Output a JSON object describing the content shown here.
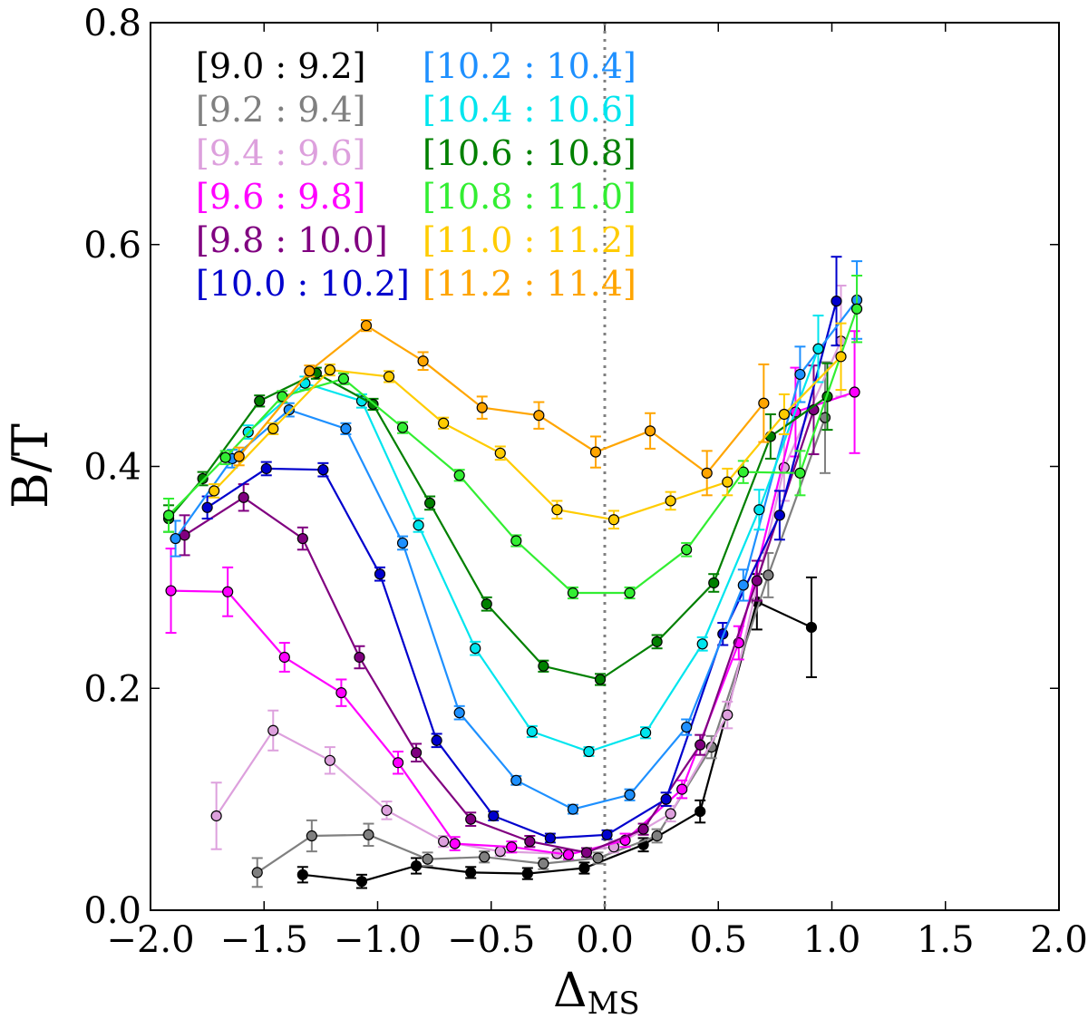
{
  "chart_data": {
    "type": "line",
    "title": "",
    "xlabel": "Δ",
    "xlabel_sub": "MS",
    "ylabel": "B/T",
    "xlim": [
      -2.0,
      2.0
    ],
    "ylim": [
      0.0,
      0.8
    ],
    "x_ticks": [
      -2.0,
      -1.5,
      -1.0,
      -0.5,
      0.0,
      0.5,
      1.0,
      1.5,
      2.0
    ],
    "x_tick_labels": [
      "−2.0",
      "−1.5",
      "−1.0",
      "−0.5",
      "0.0",
      "0.5",
      "1.0",
      "1.5",
      "2.0"
    ],
    "y_ticks": [
      0.0,
      0.2,
      0.4,
      0.6,
      0.8
    ],
    "y_tick_labels": [
      "0.0",
      "0.2",
      "0.4",
      "0.6",
      "0.8"
    ],
    "reference_line": {
      "x": 0.0,
      "style": "dotted",
      "color": "#808080"
    },
    "legend_position": "top-left",
    "series": [
      {
        "name": "[9.0 : 9.2]",
        "color": "#000000",
        "x": [
          -1.33,
          -1.07,
          -0.83,
          -0.59,
          -0.34,
          -0.09,
          0.17,
          0.42,
          0.67,
          0.91
        ],
        "y": [
          0.032,
          0.026,
          0.04,
          0.034,
          0.033,
          0.038,
          0.059,
          0.089,
          0.278,
          0.255
        ],
        "err": [
          0.007,
          0.006,
          0.007,
          0.005,
          0.005,
          0.005,
          0.006,
          0.01,
          0.025,
          0.045
        ]
      },
      {
        "name": "[9.2 : 9.4]",
        "color": "#808080",
        "x": [
          -1.53,
          -1.29,
          -1.04,
          -0.78,
          -0.53,
          -0.27,
          -0.03,
          0.23,
          0.47,
          0.72,
          0.97
        ],
        "y": [
          0.034,
          0.067,
          0.068,
          0.046,
          0.048,
          0.042,
          0.047,
          0.067,
          0.147,
          0.302,
          0.444
        ],
        "err": [
          0.013,
          0.014,
          0.01,
          0.006,
          0.005,
          0.005,
          0.005,
          0.006,
          0.01,
          0.02,
          0.05
        ]
      },
      {
        "name": "[9.4 : 9.6]",
        "color": "#dda0dd",
        "x": [
          -1.71,
          -1.46,
          -1.21,
          -0.96,
          -0.71,
          -0.46,
          -0.21,
          0.04,
          0.29,
          0.54,
          0.79,
          1.04
        ],
        "y": [
          0.085,
          0.162,
          0.135,
          0.09,
          0.062,
          0.053,
          0.051,
          0.057,
          0.087,
          0.176,
          0.399,
          0.513
        ],
        "err": [
          0.03,
          0.018,
          0.012,
          0.008,
          0.005,
          0.004,
          0.004,
          0.005,
          0.007,
          0.012,
          0.03,
          0.05
        ]
      },
      {
        "name": "[9.6 : 9.8]",
        "color": "#ff00ff",
        "x": [
          -1.91,
          -1.66,
          -1.41,
          -1.16,
          -0.91,
          -0.66,
          -0.41,
          -0.16,
          0.09,
          0.34,
          0.59,
          0.84,
          1.1
        ],
        "y": [
          0.288,
          0.287,
          0.228,
          0.196,
          0.133,
          0.06,
          0.057,
          0.05,
          0.063,
          0.109,
          0.241,
          0.449,
          0.467
        ],
        "err": [
          0.038,
          0.022,
          0.013,
          0.012,
          0.01,
          0.006,
          0.005,
          0.004,
          0.006,
          0.008,
          0.015,
          0.04,
          0.055
        ]
      },
      {
        "name": "[9.8 : 10.0]",
        "color": "#800080",
        "x": [
          -1.85,
          -1.59,
          -1.33,
          -1.08,
          -0.83,
          -0.59,
          -0.33,
          -0.08,
          0.17,
          0.42,
          0.67,
          0.92
        ],
        "y": [
          0.338,
          0.372,
          0.335,
          0.228,
          0.142,
          0.082,
          0.062,
          0.052,
          0.073,
          0.149,
          0.297,
          0.451
        ],
        "err": [
          0.018,
          0.012,
          0.01,
          0.01,
          0.008,
          0.006,
          0.005,
          0.004,
          0.005,
          0.009,
          0.018,
          0.04
        ]
      },
      {
        "name": "[10.0 : 10.2]",
        "color": "#0000cd",
        "x": [
          -1.75,
          -1.49,
          -1.24,
          -0.99,
          -0.74,
          -0.49,
          -0.24,
          0.01,
          0.27,
          0.52,
          0.77,
          1.02
        ],
        "y": [
          0.363,
          0.398,
          0.397,
          0.303,
          0.153,
          0.085,
          0.065,
          0.068,
          0.1,
          0.249,
          0.356,
          0.549
        ],
        "err": [
          0.01,
          0.006,
          0.006,
          0.006,
          0.006,
          0.004,
          0.004,
          0.004,
          0.006,
          0.01,
          0.022,
          0.04
        ]
      },
      {
        "name": "[10.2 : 10.4]",
        "color": "#1e90ff",
        "x": [
          -1.89,
          -1.64,
          -1.39,
          -1.14,
          -0.89,
          -0.64,
          -0.39,
          -0.14,
          0.11,
          0.36,
          0.61,
          0.86,
          1.11
        ],
        "y": [
          0.335,
          0.407,
          0.451,
          0.434,
          0.331,
          0.178,
          0.117,
          0.091,
          0.104,
          0.165,
          0.293,
          0.483,
          0.55
        ],
        "err": [
          0.016,
          0.008,
          0.006,
          0.005,
          0.006,
          0.006,
          0.004,
          0.004,
          0.005,
          0.007,
          0.014,
          0.025,
          0.035
        ]
      },
      {
        "name": "[10.4 : 10.6]",
        "color": "#00e5ee",
        "x": [
          -1.57,
          -1.32,
          -1.07,
          -0.82,
          -0.57,
          -0.32,
          -0.07,
          0.18,
          0.43,
          0.68,
          0.94
        ],
        "y": [
          0.431,
          0.475,
          0.459,
          0.347,
          0.236,
          0.161,
          0.143,
          0.16,
          0.24,
          0.361,
          0.506
        ],
        "err": [
          0.006,
          0.006,
          0.006,
          0.006,
          0.006,
          0.005,
          0.004,
          0.005,
          0.006,
          0.018,
          0.03
        ]
      },
      {
        "name": "[10.6 : 10.8]",
        "color": "#008000",
        "x": [
          -1.92,
          -1.77,
          -1.52,
          -1.27,
          -1.02,
          -0.77,
          -0.52,
          -0.27,
          -0.02,
          0.23,
          0.48,
          0.73,
          0.98
        ],
        "y": [
          0.353,
          0.389,
          0.459,
          0.484,
          0.456,
          0.367,
          0.276,
          0.22,
          0.208,
          0.242,
          0.295,
          0.427,
          0.463
        ],
        "err": [
          0.012,
          0.006,
          0.005,
          0.005,
          0.005,
          0.006,
          0.006,
          0.005,
          0.005,
          0.006,
          0.008,
          0.02,
          0.03
        ]
      },
      {
        "name": "[10.8 : 11.0]",
        "color": "#32ee32",
        "x": [
          -1.92,
          -1.67,
          -1.42,
          -1.15,
          -0.89,
          -0.64,
          -0.39,
          -0.14,
          0.11,
          0.36,
          0.61,
          0.86,
          1.11
        ],
        "y": [
          0.356,
          0.408,
          0.463,
          0.479,
          0.435,
          0.392,
          0.333,
          0.286,
          0.286,
          0.325,
          0.395,
          0.394,
          0.542
        ],
        "err": [
          0.015,
          0.006,
          0.005,
          0.005,
          0.005,
          0.005,
          0.005,
          0.005,
          0.005,
          0.006,
          0.01,
          0.02,
          0.03
        ]
      },
      {
        "name": "[11.0 : 11.2]",
        "color": "#ffcc00",
        "x": [
          -1.72,
          -1.46,
          -1.21,
          -0.95,
          -0.71,
          -0.46,
          -0.21,
          0.04,
          0.29,
          0.54,
          0.79,
          1.04
        ],
        "y": [
          0.378,
          0.434,
          0.487,
          0.481,
          0.439,
          0.412,
          0.361,
          0.352,
          0.369,
          0.386,
          0.447,
          0.499
        ],
        "err": [
          0.006,
          0.005,
          0.005,
          0.005,
          0.005,
          0.006,
          0.008,
          0.008,
          0.008,
          0.012,
          0.018,
          0.03
        ]
      },
      {
        "name": "[11.2 : 11.4]",
        "color": "#ffa500",
        "x": [
          -1.61,
          -1.3,
          -1.05,
          -0.8,
          -0.54,
          -0.29,
          -0.04,
          0.2,
          0.45,
          0.7
        ],
        "y": [
          0.409,
          0.486,
          0.527,
          0.495,
          0.453,
          0.446,
          0.413,
          0.432,
          0.394,
          0.457
        ],
        "err": [
          0.008,
          0.005,
          0.005,
          0.008,
          0.01,
          0.012,
          0.014,
          0.016,
          0.02,
          0.035
        ]
      }
    ]
  }
}
